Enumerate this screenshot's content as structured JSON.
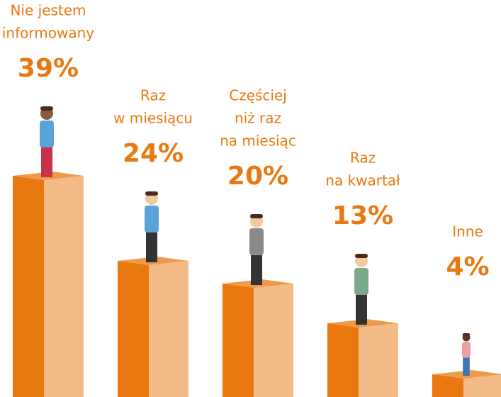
{
  "chart_data": {
    "type": "bar3d",
    "categories": [
      [
        "Nie jestem",
        "informowany"
      ],
      [
        "Raz",
        "w miesiącu"
      ],
      [
        "Częściej",
        "niż raz",
        "na miesiąc"
      ],
      [
        "Raz",
        "na kwartał"
      ],
      [
        "Inne"
      ]
    ],
    "values": [
      39,
      24,
      20,
      13,
      4
    ],
    "value_labels": [
      "39%",
      "24%",
      "20%",
      "13%",
      "4%"
    ],
    "color": "#e8780f"
  }
}
